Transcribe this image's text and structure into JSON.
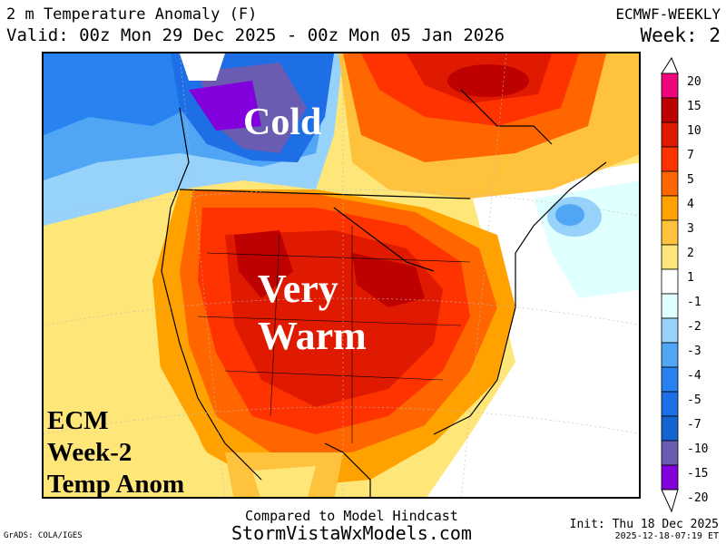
{
  "header": {
    "title": "2 m Temperature Anomaly (F)",
    "valid": "Valid: 00z Mon 29 Dec 2025 - 00z Mon 05 Jan 2026",
    "model": "ECMWF-WEEKLY",
    "week": "Week: 2"
  },
  "overlay": {
    "cold": "Cold",
    "very": "Very",
    "warm": "Warm",
    "ecm_lines": [
      "ECM",
      "Week-2",
      "Temp Anom"
    ]
  },
  "colorbar": {
    "labels": [
      "20",
      "15",
      "10",
      "7",
      "5",
      "4",
      "3",
      "2",
      "1",
      "-1",
      "-2",
      "-3",
      "-4",
      "-5",
      "-7",
      "-10",
      "-15",
      "-20"
    ],
    "colors": [
      "#f0067c",
      "#bd0000",
      "#e01a00",
      "#ff3300",
      "#ff6600",
      "#ffa200",
      "#ffc23c",
      "#ffe678",
      "#ffffff",
      "#e0ffff",
      "#96d2fa",
      "#50a5f5",
      "#2882f0",
      "#1e6ee6",
      "#1464d2",
      "#6a5cb0",
      "#8200dc"
    ]
  },
  "footer": {
    "compared": "Compared to Model Hindcast",
    "site": "StormVistaWxModels.com",
    "grads": "GrADS: COLA/IGES",
    "init": "Init: Thu 18 Dec 2025",
    "stamp": "2025-12-18-07:19 ET"
  }
}
